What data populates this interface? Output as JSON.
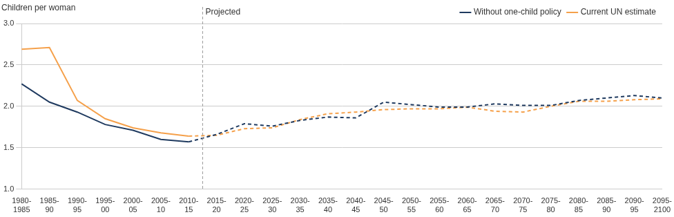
{
  "chart_data": {
    "type": "line",
    "y_label": "Children per woman",
    "categories": [
      "1980-1985",
      "1985-90",
      "1990-95",
      "1995-00",
      "2000-05",
      "2005-10",
      "2010-15",
      "2015-20",
      "2020-25",
      "2025-30",
      "2030-35",
      "2035-40",
      "2040-45",
      "2045-50",
      "2050-55",
      "2055-60",
      "2060-65",
      "2065-70",
      "2070-75",
      "2075-80",
      "2080-85",
      "2085-90",
      "2090-95",
      "2095-2100"
    ],
    "series": [
      {
        "name": "Without one-child policy",
        "color": "#1f3a5f",
        "values": [
          2.27,
          2.05,
          1.93,
          1.78,
          1.71,
          1.6,
          1.57,
          1.66,
          1.79,
          1.76,
          1.83,
          1.87,
          1.86,
          2.05,
          2.02,
          1.99,
          1.99,
          2.03,
          2.01,
          2.01,
          2.07,
          2.1,
          2.13,
          2.1
        ]
      },
      {
        "name": "Current UN estimate",
        "color": "#f5a04a",
        "values": [
          2.69,
          2.71,
          2.07,
          1.85,
          1.74,
          1.68,
          1.64,
          1.65,
          1.73,
          1.74,
          1.84,
          1.91,
          1.93,
          1.96,
          1.97,
          1.97,
          1.99,
          1.94,
          1.93,
          2.0,
          2.06,
          2.06,
          2.08,
          2.09
        ]
      }
    ],
    "annotations": [
      {
        "text": "Projected",
        "after": "2010-15"
      }
    ],
    "ylim": [
      1,
      3
    ],
    "yticks": [
      {
        "value": 1,
        "label": "1.0"
      },
      {
        "value": 1.5,
        "label": "1.5"
      },
      {
        "value": 2,
        "label": "2.0"
      },
      {
        "value": 2.5,
        "label": "2.5"
      },
      {
        "value": 3,
        "label": "3.0"
      }
    ],
    "grid": true,
    "legend": "top-right"
  }
}
